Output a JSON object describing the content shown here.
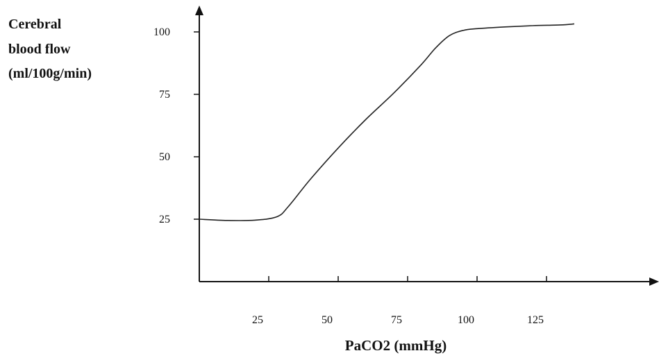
{
  "chart_data": {
    "type": "line",
    "title": "",
    "ylabel_lines": [
      "Cerebral",
      "blood flow",
      "(ml/100g/min)"
    ],
    "xlabel": "PaCO2 (mmHg)",
    "x_ticks": [
      25,
      50,
      75,
      100,
      125
    ],
    "y_ticks": [
      25,
      50,
      75,
      100
    ],
    "xlim": [
      0,
      150
    ],
    "ylim": [
      0,
      112
    ],
    "grid": false,
    "series": [
      {
        "x": [
          0,
          10,
          20,
          28,
          32,
          40,
          50,
          60,
          70,
          80,
          85,
          90,
          95,
          100,
          110,
          120,
          130,
          135
        ],
        "y": [
          25,
          24.5,
          24.6,
          26,
          30,
          41,
          53.5,
          65,
          75.5,
          87,
          93.5,
          98.5,
          100.6,
          101.3,
          102,
          102.5,
          102.8,
          103.2
        ],
        "color": "#222222"
      }
    ]
  }
}
